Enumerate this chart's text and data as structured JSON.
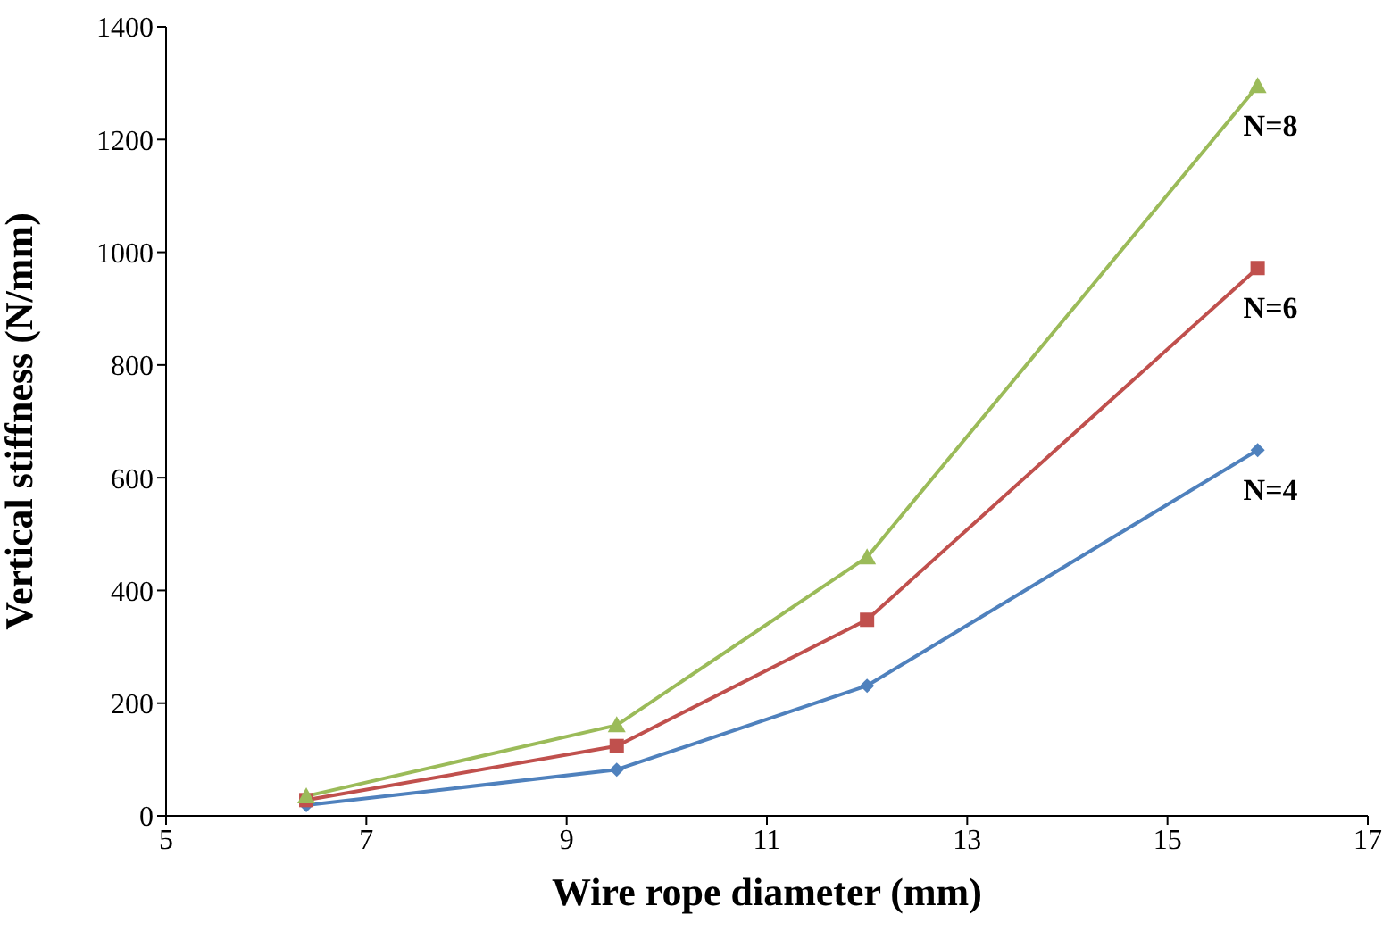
{
  "chart_data": {
    "type": "line",
    "xlabel": "Wire rope diameter (mm)",
    "ylabel": "Vertical stiffness (N/mm)",
    "x": [
      6.4,
      9.5,
      12,
      15.9
    ],
    "series": [
      {
        "name": "N=4",
        "color": "#4f81bd",
        "marker": "diamond",
        "values": [
          19,
          82,
          231,
          649
        ]
      },
      {
        "name": "N=6",
        "color": "#c0504d",
        "marker": "square",
        "values": [
          28,
          124,
          348,
          972
        ]
      },
      {
        "name": "N=8",
        "color": "#9bbb59",
        "marker": "triangle",
        "values": [
          35,
          161,
          459,
          1295
        ]
      }
    ],
    "xlim": [
      5,
      17
    ],
    "xticks": [
      5,
      7,
      9,
      11,
      13,
      15,
      17
    ],
    "ylim": [
      0,
      1400
    ],
    "yticks": [
      0,
      200,
      400,
      600,
      800,
      1000,
      1200,
      1400
    ],
    "grid": false,
    "legend": false
  }
}
